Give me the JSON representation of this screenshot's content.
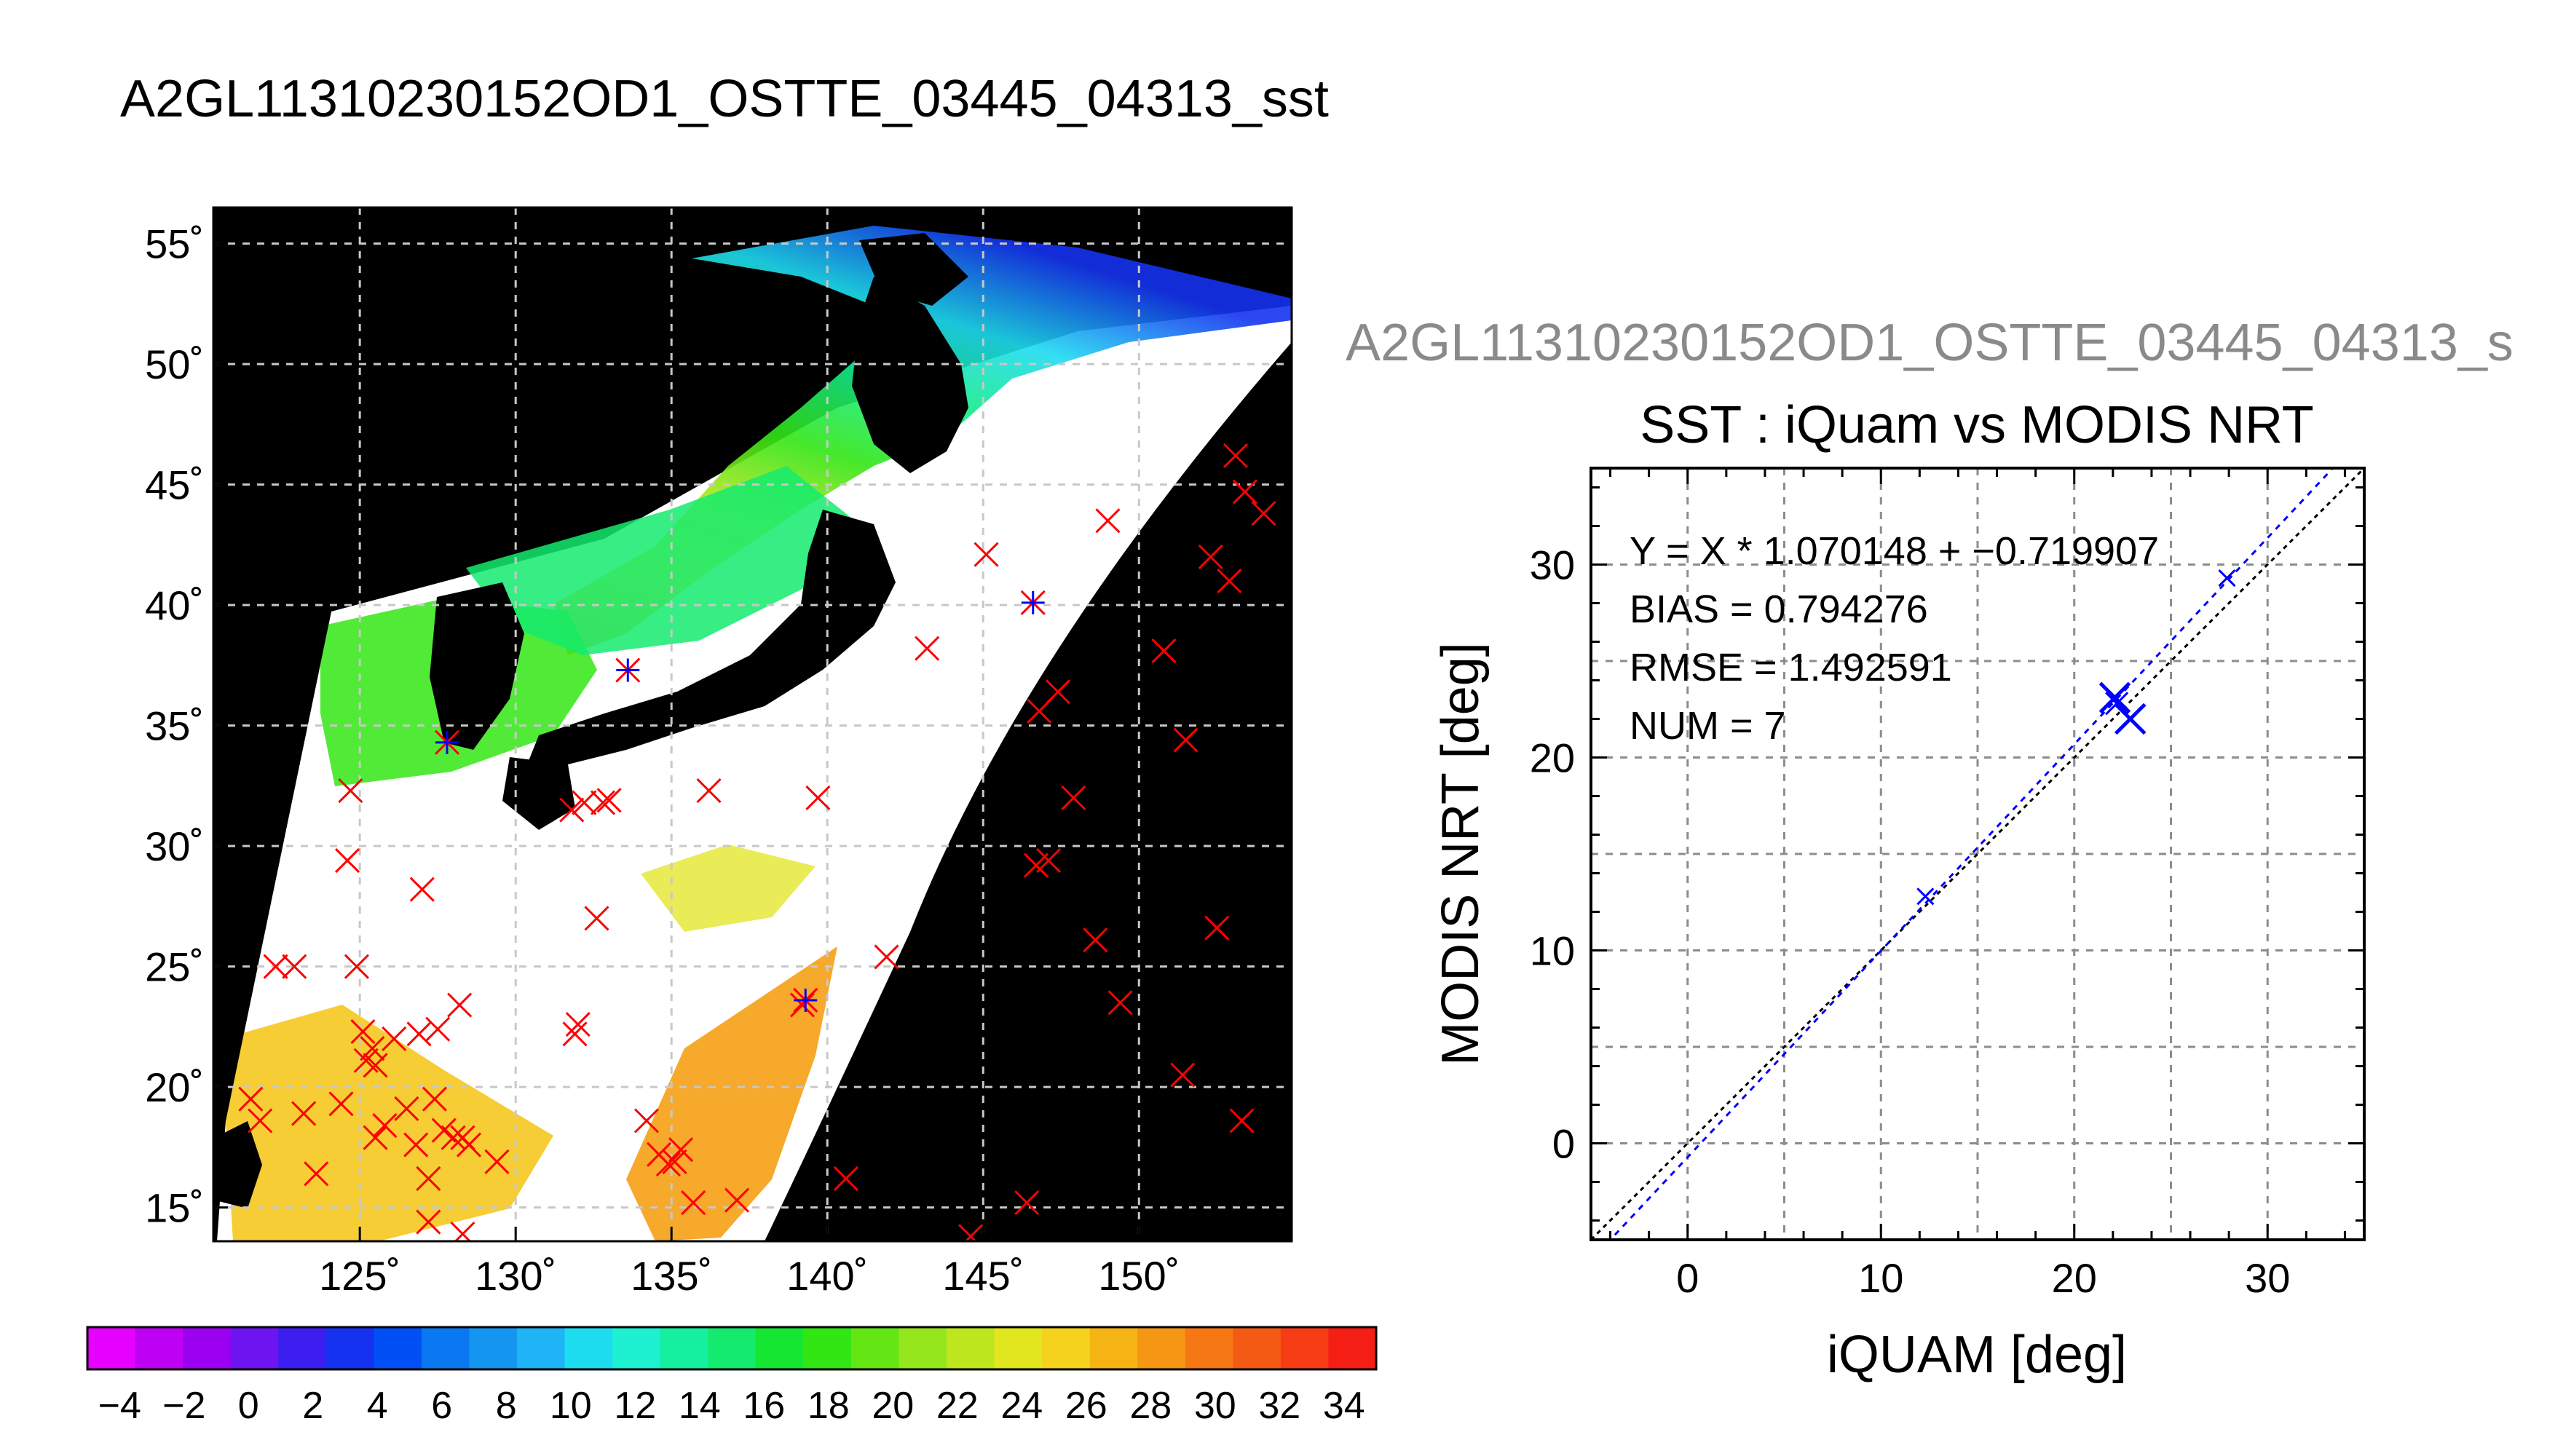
{
  "title": "A2GL11310230152OD1_OSTTE_03445_04313_sst",
  "scatter_file_title": "A2GL11310230152OD1_OSTTE_03445_04313_s",
  "colors": {
    "match_marker": "#ff0000",
    "buoy_marker": "#0000ff",
    "land": "#000000",
    "regression_line": "#0000ff",
    "identity_line": "#000000"
  },
  "chart_data": [
    {
      "type": "heatmap",
      "title": "A2GL11310230152OD1_OSTTE_03445_04313_sst",
      "description_kind": "sst swath map",
      "lon_ticks": [
        125,
        130,
        135,
        140,
        145,
        150
      ],
      "lat_ticks": [
        15,
        20,
        25,
        30,
        35,
        40,
        45,
        50,
        55
      ],
      "lon_tick_labels": [
        "125˚",
        "130˚",
        "135˚",
        "140˚",
        "145˚",
        "150˚"
      ],
      "lat_tick_labels": [
        "15˚",
        "20˚",
        "25˚",
        "30˚",
        "35˚",
        "40˚",
        "45˚",
        "50˚",
        "55˚"
      ],
      "xlim": [
        120.3,
        154.9
      ],
      "ylim": [
        13.6,
        56.5
      ],
      "grid": true,
      "match_points_red": [
        [
          121.5,
          19.5
        ],
        [
          121.8,
          18.6
        ],
        [
          122.3,
          25.0
        ],
        [
          122.9,
          25.0
        ],
        [
          123.2,
          18.9
        ],
        [
          123.6,
          16.4
        ],
        [
          124.4,
          19.3
        ],
        [
          124.6,
          29.4
        ],
        [
          124.7,
          32.3
        ],
        [
          124.9,
          25.0
        ],
        [
          125.1,
          22.3
        ],
        [
          125.2,
          21.1
        ],
        [
          125.4,
          21.6
        ],
        [
          125.5,
          20.9
        ],
        [
          125.5,
          17.9
        ],
        [
          125.8,
          18.4
        ],
        [
          126.1,
          22.0
        ],
        [
          126.5,
          19.1
        ],
        [
          126.8,
          17.6
        ],
        [
          126.9,
          22.2
        ],
        [
          127.0,
          28.2
        ],
        [
          127.2,
          16.2
        ],
        [
          127.4,
          19.5
        ],
        [
          127.5,
          22.4
        ],
        [
          127.7,
          18.2
        ],
        [
          128.0,
          17.9
        ],
        [
          128.2,
          23.4
        ],
        [
          128.3,
          17.9
        ],
        [
          128.5,
          17.6
        ],
        [
          127.2,
          14.4
        ],
        [
          128.3,
          13.9
        ],
        [
          129.4,
          16.9
        ],
        [
          131.8,
          31.5
        ],
        [
          131.9,
          22.2
        ],
        [
          132.0,
          22.6
        ],
        [
          132.2,
          31.8
        ],
        [
          132.6,
          27.0
        ],
        [
          132.8,
          31.8
        ],
        [
          133.0,
          31.9
        ],
        [
          134.2,
          18.6
        ],
        [
          134.6,
          17.2
        ],
        [
          134.9,
          16.8
        ],
        [
          135.1,
          16.9
        ],
        [
          135.3,
          17.4
        ],
        [
          135.7,
          15.2
        ],
        [
          136.2,
          32.3
        ],
        [
          137.1,
          15.3
        ],
        [
          139.2,
          23.4
        ],
        [
          139.7,
          32.0
        ],
        [
          140.6,
          16.2
        ],
        [
          141.9,
          25.4
        ],
        [
          143.2,
          38.2
        ],
        [
          144.6,
          13.8
        ],
        [
          145.1,
          42.1
        ],
        [
          146.4,
          15.2
        ],
        [
          146.7,
          29.2
        ],
        [
          146.8,
          35.6
        ],
        [
          147.1,
          29.4
        ],
        [
          147.4,
          36.4
        ],
        [
          147.9,
          32.0
        ],
        [
          148.6,
          26.1
        ],
        [
          149.0,
          43.5
        ],
        [
          149.4,
          23.5
        ],
        [
          150.8,
          38.1
        ],
        [
          151.4,
          20.5
        ],
        [
          151.5,
          34.4
        ],
        [
          152.3,
          42.0
        ],
        [
          152.5,
          26.6
        ],
        [
          152.9,
          41.0
        ],
        [
          153.1,
          46.2
        ],
        [
          153.3,
          18.6
        ],
        [
          153.4,
          44.7
        ],
        [
          154.0,
          43.8
        ]
      ],
      "match_points_blue": [
        [
          127.8,
          34.3
        ],
        [
          146.6,
          40.1
        ],
        [
          139.3,
          23.6
        ],
        [
          133.6,
          37.3
        ]
      ],
      "colorbar": {
        "type": "colorbar",
        "min": -5,
        "max": 35,
        "step": 2,
        "tick_labels": [
          "−4",
          "−2",
          "0",
          "2",
          "4",
          "6",
          "8",
          "10",
          "12",
          "14",
          "16",
          "18",
          "20",
          "22",
          "24",
          "26",
          "28",
          "30",
          "32",
          "34"
        ],
        "colors": [
          "#e600ff",
          "#be00f5",
          "#9b00f0",
          "#6e14f0",
          "#3c1ef0",
          "#1432f0",
          "#0050f5",
          "#0a78f0",
          "#1496f0",
          "#1eb4f5",
          "#1edcf0",
          "#1ef0d2",
          "#14f0a0",
          "#14eb6e",
          "#14e632",
          "#32e614",
          "#64e614",
          "#96e61e",
          "#bee61e",
          "#e1e61e",
          "#f5d21e",
          "#f5b414",
          "#f59614",
          "#f57814",
          "#f55a14",
          "#f53c14",
          "#f51e14"
        ]
      }
    },
    {
      "type": "scatter",
      "title": "SST : iQuam vs MODIS NRT",
      "xlabel": "iQUAM [deg]",
      "ylabel": "MODIS NRT [deg]",
      "xlim": [
        -5,
        35
      ],
      "ylim": [
        -5,
        35
      ],
      "x_ticks": [
        0,
        10,
        20,
        30
      ],
      "y_ticks": [
        0,
        10,
        20,
        30
      ],
      "grid": true,
      "points": [
        {
          "x": 12.3,
          "y": 12.8,
          "size": "small"
        },
        {
          "x": 22.1,
          "y": 23.1,
          "size": "large"
        },
        {
          "x": 22.2,
          "y": 22.8,
          "size": "medium"
        },
        {
          "x": 22.9,
          "y": 22.0,
          "size": "large"
        },
        {
          "x": 27.9,
          "y": 29.3,
          "size": "small"
        }
      ],
      "regression": {
        "slope": 1.070148,
        "intercept": -0.719907
      },
      "stats": {
        "equation": "Y = X * 1.070148 + −0.719907",
        "bias": "BIAS = 0.794276",
        "rmse": "RMSE = 1.492591",
        "num": "NUM = 7"
      }
    }
  ]
}
